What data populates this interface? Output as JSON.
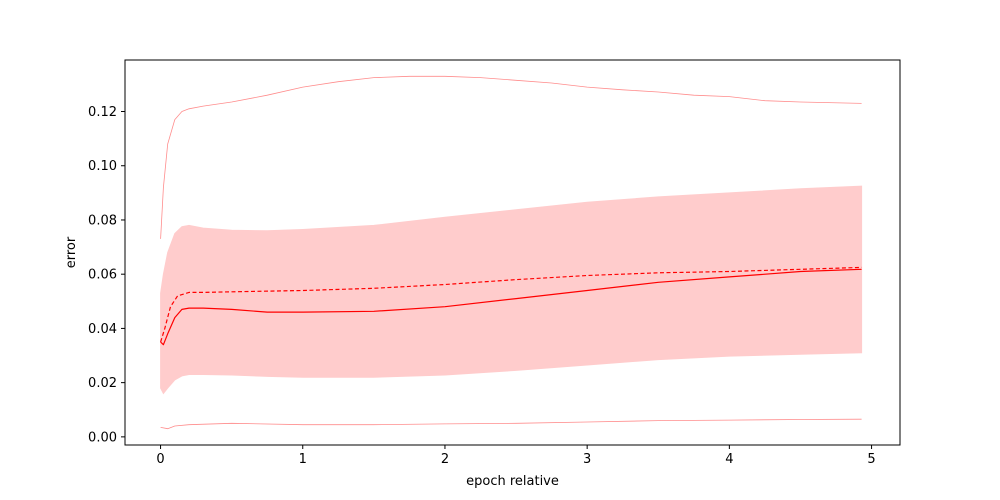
{
  "chart_data": {
    "type": "line",
    "xlabel": "epoch relative",
    "ylabel": "error",
    "xlim": [
      -0.25,
      5.2
    ],
    "ylim": [
      -0.003,
      0.139
    ],
    "xticks": [
      0,
      1,
      2,
      3,
      4,
      5
    ],
    "xtick_labels": [
      "0",
      "1",
      "2",
      "3",
      "4",
      "5"
    ],
    "yticks": [
      0.0,
      0.02,
      0.04,
      0.06,
      0.08,
      0.1,
      0.12
    ],
    "ytick_labels": [
      "0.00",
      "0.02",
      "0.04",
      "0.06",
      "0.08",
      "0.10",
      "0.12"
    ],
    "grid": false,
    "legend": "none",
    "color": "#ff0000",
    "band_color": "#ffcccc",
    "series": [
      {
        "role": "mean",
        "style": "solid",
        "x": [
          0,
          0.02,
          0.05,
          0.1,
          0.15,
          0.2,
          0.3,
          0.5,
          0.75,
          1.0,
          1.5,
          2.0,
          2.5,
          3.0,
          3.5,
          4.0,
          4.5,
          4.93
        ],
        "y": [
          0.035,
          0.034,
          0.038,
          0.044,
          0.047,
          0.0475,
          0.0475,
          0.047,
          0.046,
          0.046,
          0.0463,
          0.048,
          0.051,
          0.054,
          0.057,
          0.059,
          0.061,
          0.0618
        ]
      },
      {
        "role": "median",
        "style": "dashed",
        "x": [
          0,
          0.03,
          0.07,
          0.12,
          0.2,
          0.3,
          0.5,
          1.0,
          1.5,
          2.0,
          2.5,
          3.0,
          3.5,
          4.0,
          4.5,
          4.93
        ],
        "y": [
          0.035,
          0.04,
          0.048,
          0.052,
          0.0533,
          0.0533,
          0.0535,
          0.054,
          0.0548,
          0.0562,
          0.058,
          0.0595,
          0.0605,
          0.061,
          0.0618,
          0.0625
        ]
      },
      {
        "role": "band_upper",
        "style": "fill",
        "x": [
          0,
          0.02,
          0.05,
          0.1,
          0.15,
          0.2,
          0.3,
          0.5,
          0.75,
          1.0,
          1.5,
          2.0,
          2.5,
          3.0,
          3.5,
          4.0,
          4.5,
          4.93
        ],
        "y": [
          0.053,
          0.06,
          0.068,
          0.075,
          0.0775,
          0.078,
          0.077,
          0.0762,
          0.076,
          0.0765,
          0.078,
          0.081,
          0.0838,
          0.0865,
          0.0885,
          0.09,
          0.0915,
          0.0925
        ]
      },
      {
        "role": "band_lower",
        "style": "fill",
        "x": [
          0,
          0.02,
          0.05,
          0.1,
          0.15,
          0.2,
          0.3,
          0.5,
          0.75,
          1.0,
          1.5,
          2.0,
          2.5,
          3.0,
          3.5,
          4.0,
          4.5,
          4.93
        ],
        "y": [
          0.018,
          0.016,
          0.018,
          0.021,
          0.0225,
          0.023,
          0.023,
          0.0228,
          0.0223,
          0.022,
          0.022,
          0.0228,
          0.0245,
          0.0265,
          0.0285,
          0.0298,
          0.0305,
          0.031
        ]
      },
      {
        "role": "max",
        "style": "thin",
        "x": [
          0,
          0.02,
          0.05,
          0.1,
          0.15,
          0.2,
          0.3,
          0.5,
          0.75,
          1.0,
          1.25,
          1.5,
          1.75,
          2.0,
          2.25,
          2.5,
          2.75,
          3.0,
          3.25,
          3.5,
          3.75,
          4.0,
          4.25,
          4.5,
          4.93
        ],
        "y": [
          0.073,
          0.092,
          0.108,
          0.117,
          0.12,
          0.121,
          0.122,
          0.1235,
          0.126,
          0.129,
          0.131,
          0.1325,
          0.133,
          0.133,
          0.1325,
          0.1315,
          0.1305,
          0.129,
          0.128,
          0.1272,
          0.126,
          0.1255,
          0.124,
          0.1235,
          0.123
        ]
      },
      {
        "role": "min",
        "style": "thin",
        "x": [
          0,
          0.05,
          0.1,
          0.2,
          0.5,
          1.0,
          1.5,
          2.0,
          2.5,
          3.0,
          3.5,
          4.0,
          4.5,
          4.93
        ],
        "y": [
          0.0035,
          0.003,
          0.004,
          0.0045,
          0.005,
          0.0045,
          0.0045,
          0.0048,
          0.005,
          0.0055,
          0.006,
          0.0062,
          0.0064,
          0.0065
        ]
      }
    ]
  }
}
